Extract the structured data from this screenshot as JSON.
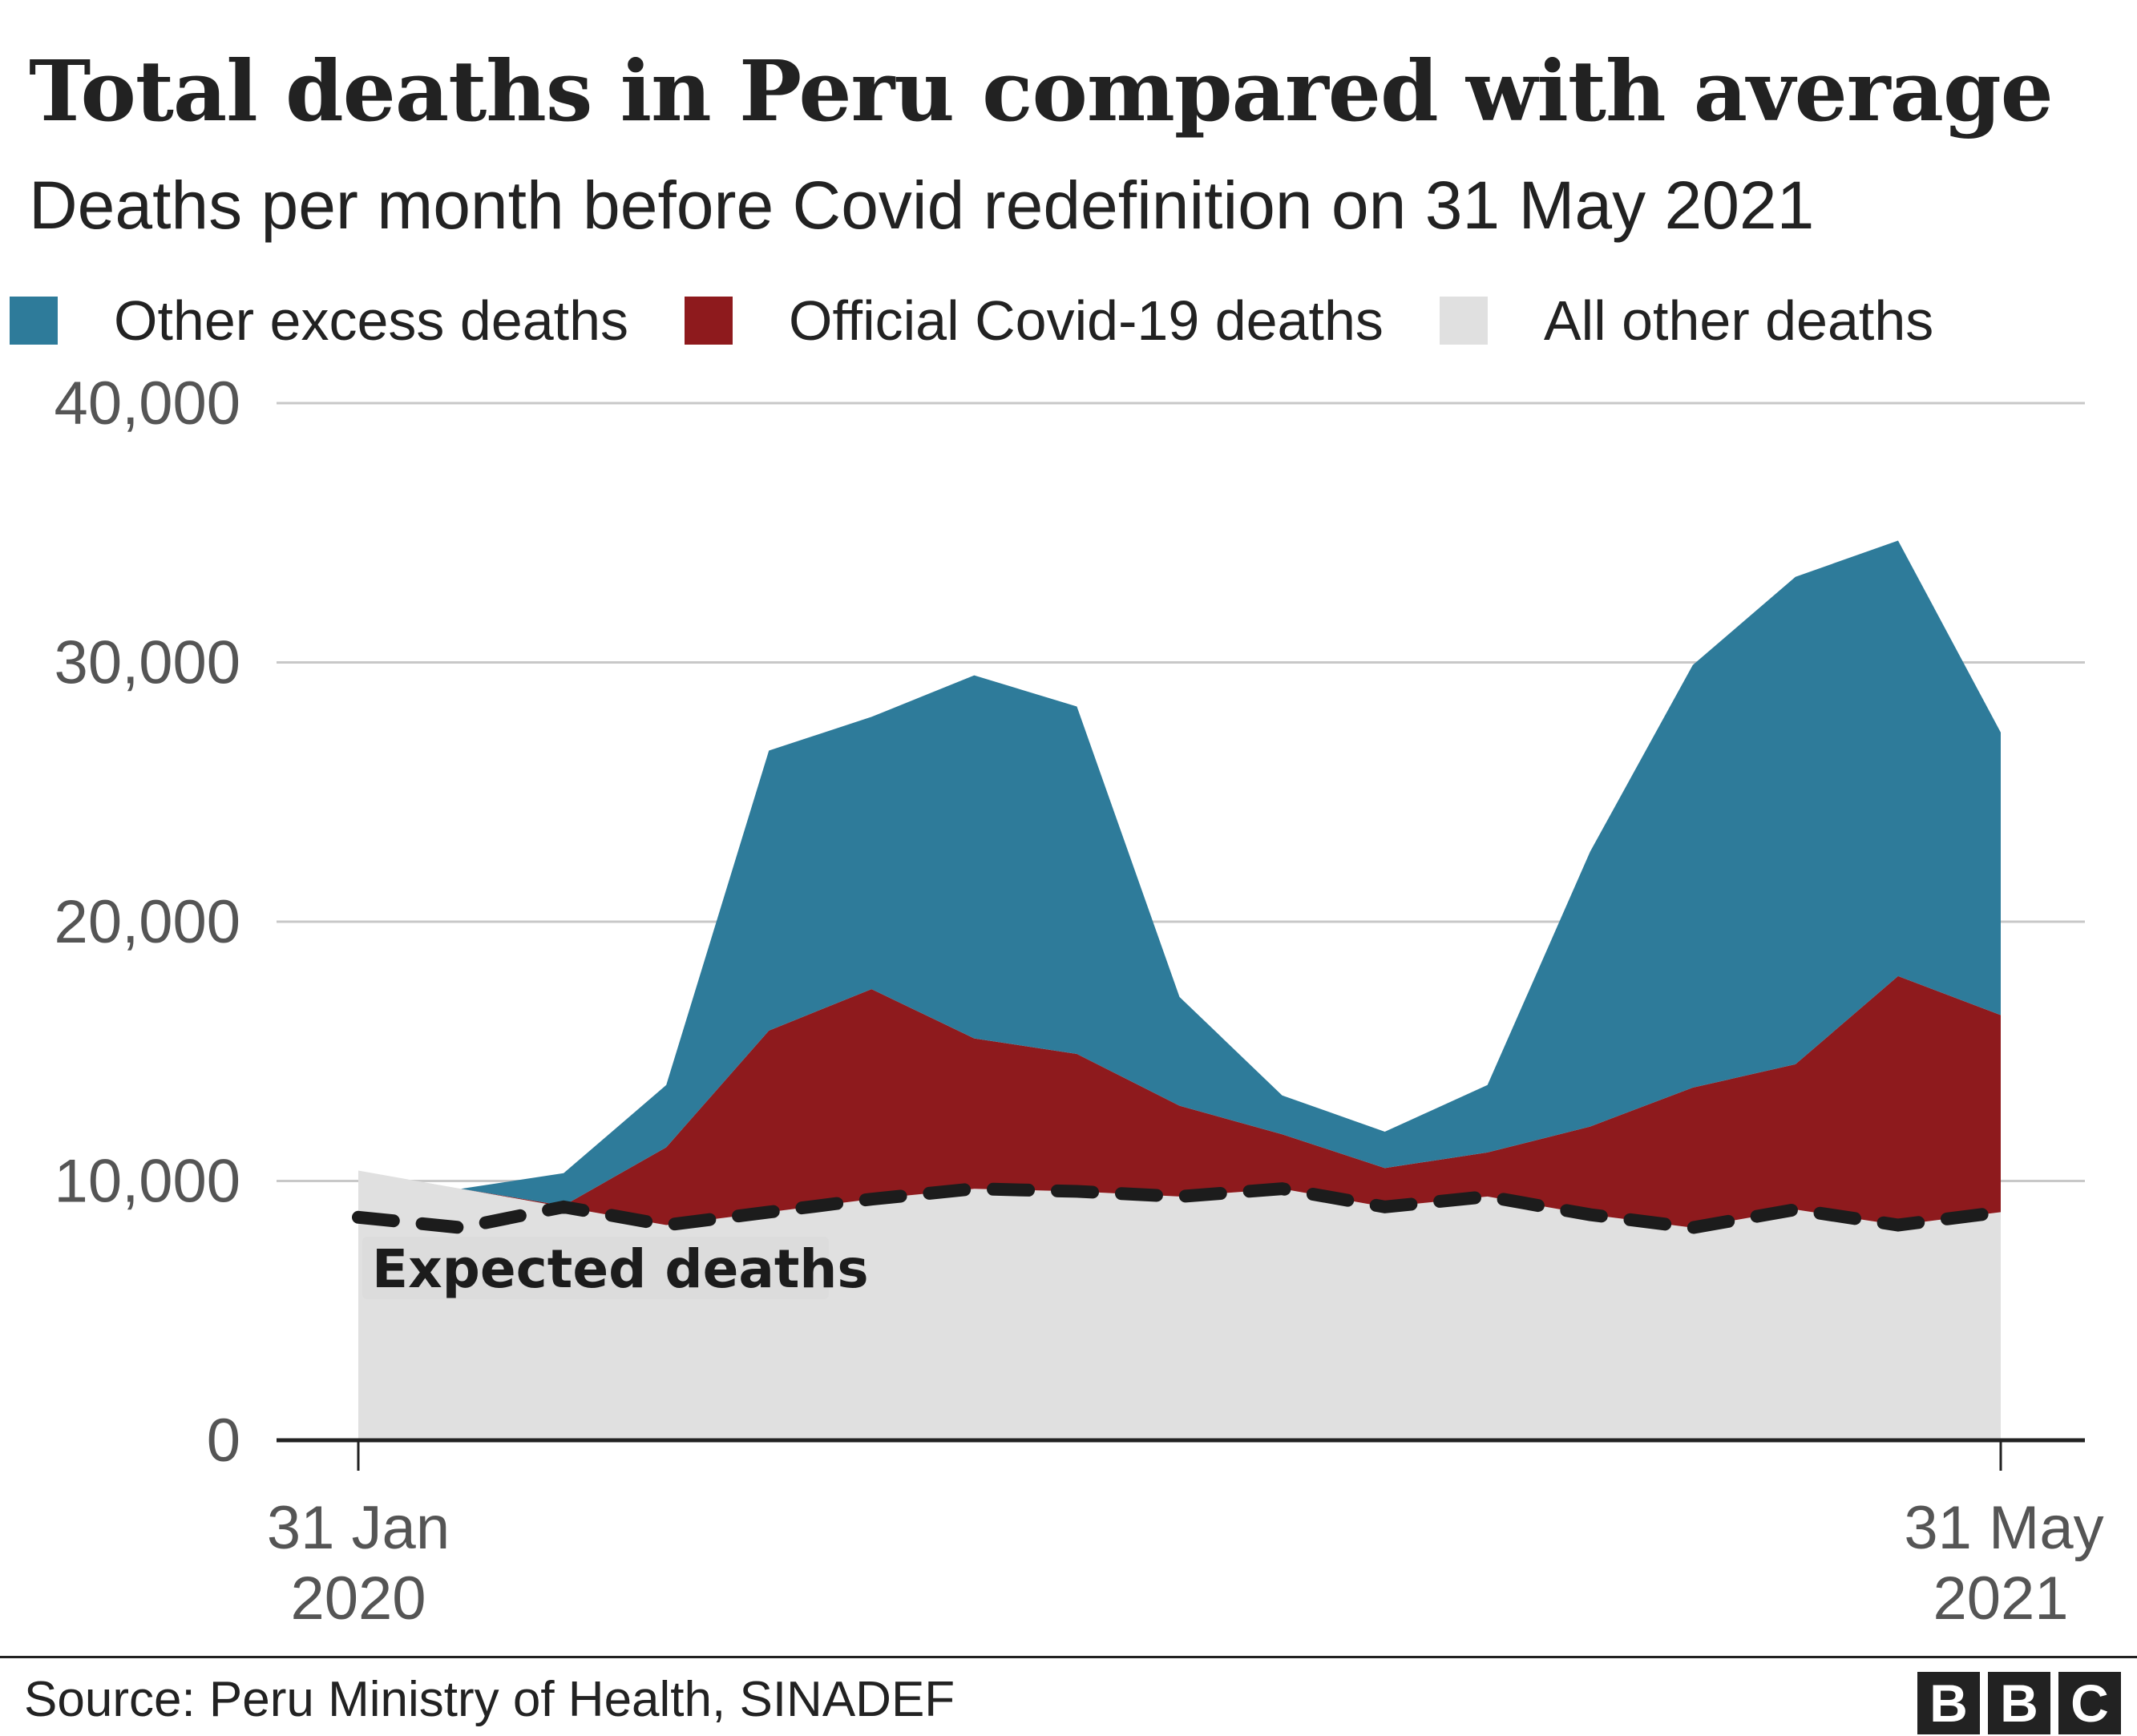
{
  "chart_data": {
    "type": "area",
    "stacked": true,
    "title": "Total deaths in Peru compared with average",
    "subtitle": "Deaths per month before Covid redefinition on 31 May 2021",
    "x": [
      "2020-01",
      "2020-02",
      "2020-03",
      "2020-04",
      "2020-05",
      "2020-06",
      "2020-07",
      "2020-08",
      "2020-09",
      "2020-10",
      "2020-11",
      "2020-12",
      "2021-01",
      "2021-02",
      "2021-03",
      "2021-04",
      "2021-05"
    ],
    "x_tick_labels": [
      {
        "line1": "31 Jan",
        "line2": "2020"
      },
      {
        "line1": "31 May",
        "line2": "2021"
      }
    ],
    "y_ticks": [
      "0",
      "10,000",
      "20,000",
      "30,000",
      "40,000"
    ],
    "ylim": [
      0,
      40000
    ],
    "grid": true,
    "legend_placement": "top",
    "series": [
      {
        "name": "All other deaths",
        "color": "#e0e0e0",
        "values": [
          10400,
          9700,
          9000,
          8300,
          8800,
          9300,
          9700,
          9600,
          9400,
          9700,
          9000,
          9400,
          8700,
          8200,
          8900,
          8300,
          8800
        ]
      },
      {
        "name": "Official Covid-19 deaths",
        "color": "#8e1a1d",
        "values": [
          0,
          0,
          50,
          3000,
          7000,
          8100,
          5800,
          5300,
          3500,
          2100,
          1500,
          1700,
          3400,
          5400,
          5600,
          9600,
          7600
        ]
      },
      {
        "name": "Other excess deaths",
        "color": "#2e7b9a",
        "values": [
          0,
          0,
          1250,
          2400,
          10800,
          10500,
          14000,
          13400,
          4200,
          1500,
          1400,
          2600,
          10600,
          16300,
          18800,
          16800,
          10900
        ]
      }
    ],
    "expected": {
      "label": "Expected deaths",
      "values": [
        8600,
        8200,
        9000,
        8300,
        8800,
        9300,
        9700,
        9600,
        9400,
        9700,
        9000,
        9400,
        8700,
        8200,
        8900,
        8300,
        8800
      ]
    }
  },
  "legend_order": [
    "Other excess deaths",
    "Official Covid-19 deaths",
    "All other deaths"
  ],
  "legend_colors": [
    "#2e7b9a",
    "#8e1a1d",
    "#e0e0e0"
  ],
  "footer": {
    "source": "Source: Peru Ministry of Health, SINADEF",
    "logo": "BBC"
  }
}
